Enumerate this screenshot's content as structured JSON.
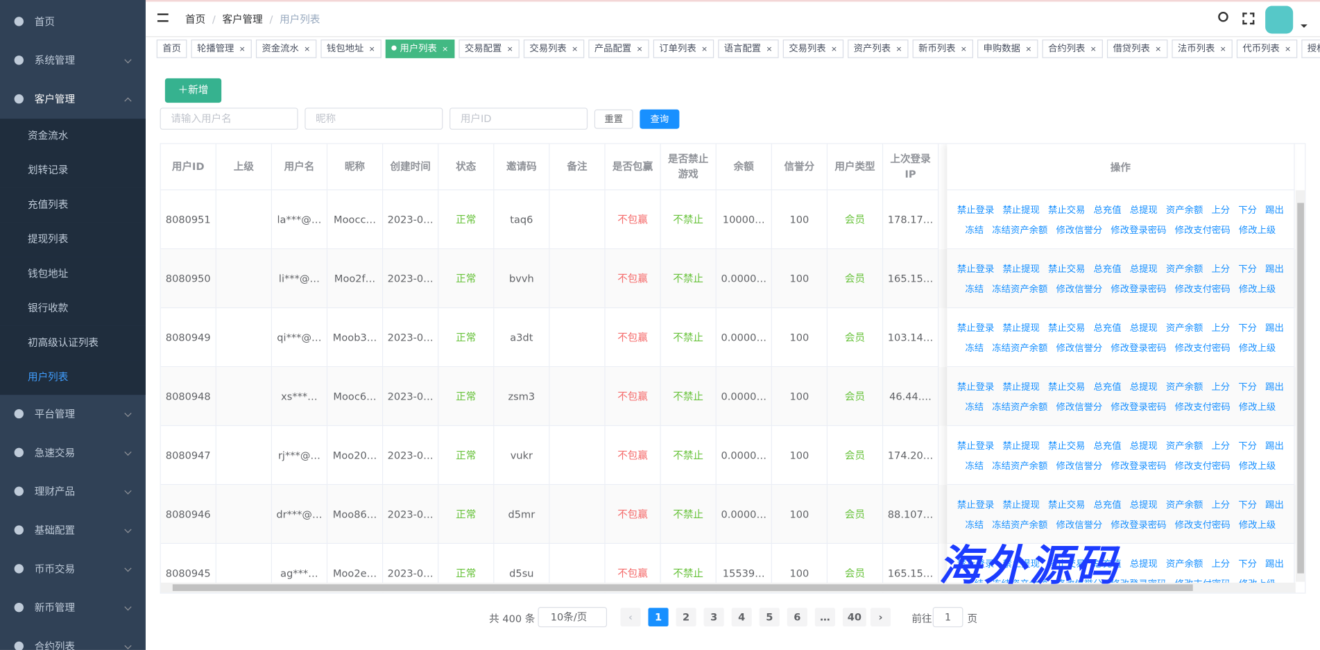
{
  "sidebar": {
    "items": [
      {
        "label": "首页"
      },
      {
        "label": "系统管理"
      },
      {
        "label": "客户管理",
        "children": [
          "资金流水",
          "划转记录",
          "充值列表",
          "提现列表",
          "钱包地址",
          "银行收款",
          "初高级认证列表",
          "用户列表"
        ]
      },
      {
        "label": "平台管理"
      },
      {
        "label": "急速交易"
      },
      {
        "label": "理财产品"
      },
      {
        "label": "基础配置"
      },
      {
        "label": "币币交易"
      },
      {
        "label": "新币管理"
      },
      {
        "label": "合约列表"
      }
    ]
  },
  "header": {
    "breadcrumb": [
      "首页",
      "客户管理",
      "用户列表"
    ]
  },
  "tabs": [
    "首页",
    "轮播管理",
    "资金流水",
    "钱包地址",
    "用户列表",
    "交易配置",
    "交易列表",
    "产品配置",
    "订单列表",
    "语言配置",
    "交易列表",
    "资产列表",
    "新币列表",
    "申购数据",
    "合约列表",
    "借贷列表",
    "法币列表",
    "代币列表",
    "授权地址"
  ],
  "toolbar": {
    "add": "＋新增",
    "placeholders": [
      "请输入用户名",
      "昵称",
      "用户ID"
    ],
    "reset": "重置",
    "search": "查询"
  },
  "table": {
    "columns": [
      "用户ID",
      "上级",
      "用户名",
      "昵称",
      "创建时间",
      "状态",
      "邀请码",
      "备注",
      "是否包赢",
      "是否禁止游戏",
      "余额",
      "信誉分",
      "用户类型",
      "上次登录IP"
    ],
    "action_column": "操作",
    "actions": [
      [
        "禁止登录",
        "禁止提现",
        "禁止交易",
        "总充值",
        "总提现",
        "资产余额",
        "上分",
        "下分",
        "踢出"
      ],
      [
        "冻结",
        "冻结资产余额",
        "修改信誉分",
        "修改登录密码",
        "修改支付密码",
        "修改上级"
      ]
    ],
    "rows": [
      [
        8080951,
        null,
        "la***@…",
        "Moocc…",
        "2023-0…",
        "正常",
        "taq6",
        null,
        "不包赢",
        "不禁止",
        "10000…",
        100,
        "会员",
        "178.17…"
      ],
      [
        8080950,
        null,
        "li***@…",
        "Moo2f…",
        "2023-0…",
        "正常",
        "bvvh",
        null,
        "不包赢",
        "不禁止",
        "0.0000…",
        100,
        "会员",
        "165.15…"
      ],
      [
        8080949,
        null,
        "qi***@…",
        "Moob3…",
        "2023-0…",
        "正常",
        "a3dt",
        null,
        "不包赢",
        "不禁止",
        "0.0000…",
        100,
        "会员",
        "103.14…"
      ],
      [
        8080948,
        null,
        "xs***…",
        "Mooc6…",
        "2023-0…",
        "正常",
        "zsm3",
        null,
        "不包赢",
        "不禁止",
        "0.0000…",
        100,
        "会员",
        "46.44.…"
      ],
      [
        8080947,
        null,
        "rj***@…",
        "Moo20…",
        "2023-0…",
        "正常",
        "vukr",
        null,
        "不包赢",
        "不禁止",
        "0.0000…",
        100,
        "会员",
        "174.20…"
      ],
      [
        8080946,
        null,
        "dr***@…",
        "Moo86…",
        "2023-0…",
        "正常",
        "d5mr",
        null,
        "不包赢",
        "不禁止",
        "0.0000…",
        100,
        "会员",
        "88.107…"
      ],
      [
        8080945,
        null,
        "ag***…",
        "Moo2e…",
        "2023-0…",
        "正常",
        "d5su",
        null,
        "不包赢",
        "不禁止",
        "15539…",
        100,
        "会员",
        "165.15…"
      ]
    ]
  },
  "pagination": {
    "total": "共 400 条",
    "page_size": "10条/页",
    "pages": [
      "1",
      "2",
      "3",
      "4",
      "5",
      "6",
      "…",
      "40"
    ],
    "goto": "前往",
    "goto_value": "1",
    "page_unit": "页"
  },
  "watermark": "海外源码"
}
